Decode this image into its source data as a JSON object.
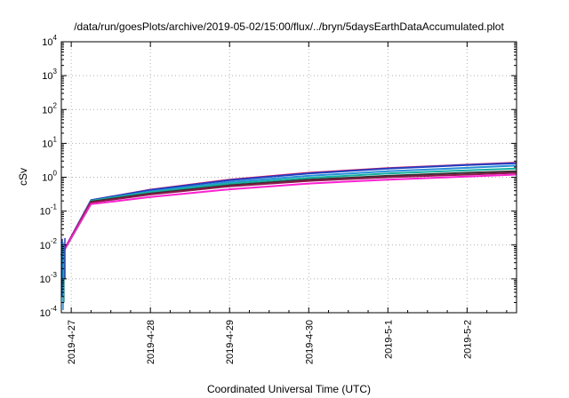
{
  "chart_data": {
    "type": "line",
    "title": "/data/run/goesPlots/archive/2019-05-02/15:00/flux/../bryn/5daysEarthDataAccumulated.plot",
    "xlabel": "Coordinated Universal Time (UTC)",
    "ylabel": "cSv",
    "yscale": "log",
    "ylim": [
      0.0001,
      10000
    ],
    "xlim": [
      "2019-04-26T21:00",
      "2019-05-02T15:00"
    ],
    "grid": true,
    "y_ticks": [
      {
        "base": "10",
        "exp": "-4"
      },
      {
        "base": "10",
        "exp": "-3"
      },
      {
        "base": "10",
        "exp": "-2"
      },
      {
        "base": "10",
        "exp": "-1"
      },
      {
        "base": "10",
        "exp": "0"
      },
      {
        "base": "10",
        "exp": "1"
      },
      {
        "base": "10",
        "exp": "2"
      },
      {
        "base": "10",
        "exp": "3"
      },
      {
        "base": "10",
        "exp": "4"
      }
    ],
    "x_ticks": [
      {
        "label": "2019-4-27",
        "t": "2019-04-27T00:00"
      },
      {
        "label": "2019-4-28",
        "t": "2019-04-28T00:00"
      },
      {
        "label": "2019-4-29",
        "t": "2019-04-29T00:00"
      },
      {
        "label": "2019-4-30",
        "t": "2019-04-30T00:00"
      },
      {
        "label": "2019-5-1",
        "t": "2019-05-01T00:00"
      },
      {
        "label": "2019-5-2",
        "t": "2019-05-02T00:00"
      }
    ],
    "x": [
      "2019-04-26T21:00",
      "2019-04-27T06:00",
      "2019-04-28T00:00",
      "2019-04-29T00:00",
      "2019-04-30T00:00",
      "2019-05-01T00:00",
      "2019-05-02T00:00",
      "2019-05-02T15:00"
    ],
    "series": [
      {
        "color": "#d4145a",
        "values": [
          0.005,
          0.21,
          0.43,
          0.85,
          1.35,
          1.85,
          2.35,
          2.7
        ]
      },
      {
        "color": "#1f3fc0",
        "values": [
          0.005,
          0.21,
          0.42,
          0.82,
          1.3,
          1.8,
          2.3,
          2.6
        ]
      },
      {
        "color": "#2a8fd8",
        "values": [
          0.005,
          0.2,
          0.38,
          0.72,
          1.1,
          1.5,
          1.9,
          2.2
        ]
      },
      {
        "color": "#14b0a0",
        "values": [
          0.005,
          0.2,
          0.36,
          0.65,
          0.95,
          1.3,
          1.6,
          1.8
        ]
      },
      {
        "color": "#333333",
        "values": [
          0.005,
          0.19,
          0.33,
          0.58,
          0.85,
          1.1,
          1.35,
          1.5
        ]
      },
      {
        "color": "#8b1a4a",
        "values": [
          0.005,
          0.18,
          0.31,
          0.54,
          0.78,
          1.0,
          1.2,
          1.35
        ]
      },
      {
        "color": "#ff20d0",
        "values": [
          0.005,
          0.16,
          0.26,
          0.44,
          0.65,
          0.85,
          1.05,
          1.2
        ]
      }
    ]
  }
}
